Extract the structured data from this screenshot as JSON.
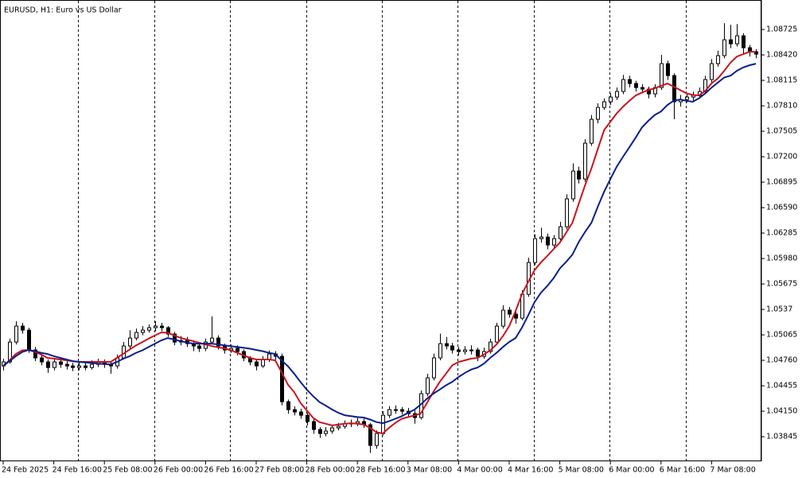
{
  "chart_data": {
    "type": "candlestick",
    "title": "EURUSD, H1:  Euro vs US Dollar",
    "categories": [
      "24 Feb 2025",
      null,
      null,
      null,
      null,
      null,
      null,
      null,
      "24 Feb 16:00",
      null,
      null,
      null,
      null,
      null,
      null,
      null,
      "25 Feb 08:00",
      null,
      null,
      null,
      null,
      null,
      null,
      null,
      "26 Feb 00:00",
      null,
      null,
      null,
      null,
      null,
      null,
      null,
      "26 Feb 16:00",
      null,
      null,
      null,
      null,
      null,
      null,
      null,
      "27 Feb 08:00",
      null,
      null,
      null,
      null,
      null,
      null,
      null,
      "28 Feb 00:00",
      null,
      null,
      null,
      null,
      null,
      null,
      null,
      "28 Feb 16:00",
      null,
      null,
      null,
      null,
      null,
      null,
      null,
      "3 Mar 08:00",
      null,
      null,
      null,
      null,
      null,
      null,
      null,
      "4 Mar 00:00",
      null,
      null,
      null,
      null,
      null,
      null,
      null,
      "4 Mar 16:00",
      null,
      null,
      null,
      null,
      null,
      null,
      null,
      "5 Mar 08:00",
      null,
      null,
      null,
      null,
      null,
      null,
      null,
      "6 Mar 00:00",
      null,
      null,
      null,
      null,
      null,
      null,
      null,
      "6 Mar 16:00",
      null,
      null,
      null,
      null,
      null,
      null,
      null,
      "7 Mar 08:00",
      null,
      null,
      null,
      null,
      null,
      null,
      null
    ],
    "open": [
      1.04693,
      1.04741,
      1.04979,
      1.0517,
      1.05122,
      1.04884,
      1.04789,
      1.04741,
      1.04674,
      1.04741,
      1.04712,
      1.04693,
      1.04674,
      1.04693,
      1.04674,
      1.04712,
      1.04741,
      1.04712,
      1.04693,
      1.04789,
      1.04932,
      1.05027,
      1.05094,
      1.05122,
      1.05151,
      1.0517,
      1.05151,
      1.05075,
      1.04979,
      1.04998,
      1.0496,
      1.04932,
      1.04903,
      1.04979,
      1.05027,
      1.04932,
      1.04884,
      1.04903,
      1.04865,
      1.04789,
      1.04741,
      1.04693,
      1.0477,
      1.04836,
      1.04808,
      1.04264,
      1.04169,
      1.04141,
      1.04102,
      1.04026,
      1.03931,
      1.03883,
      1.03912,
      1.0395,
      1.03969,
      1.03998,
      1.04007,
      1.04026,
      1.03988,
      1.0374,
      1.03883,
      1.04102,
      1.04169,
      1.04169,
      1.0415,
      1.04121,
      1.04074,
      1.0436,
      1.0455,
      1.04789,
      1.0496,
      1.04932,
      1.04884,
      1.04865,
      1.04884,
      1.04884,
      1.04808,
      1.04865,
      1.04979,
      1.0517,
      1.05361,
      1.05313,
      1.05265,
      1.05551,
      1.05932,
      1.06218,
      1.06237,
      1.06142,
      1.06218,
      1.06361,
      1.06695,
      1.07028,
      1.06933,
      1.07362,
      1.07648,
      1.07791,
      1.07858,
      1.07915,
      1.07982,
      1.08125,
      1.08077,
      1.08029,
      1.0801,
      1.07953,
      1.08029,
      1.08315,
      1.08172,
      1.07858,
      1.07886,
      1.07915,
      1.07934,
      1.07982,
      1.08125,
      1.08315,
      1.08411,
      1.08601,
      1.08553,
      1.08649,
      1.08506,
      1.08458
    ],
    "high": [
      1.0478,
      1.0502,
      1.0523,
      1.0521,
      1.0515,
      1.0492,
      1.0483,
      1.0477,
      1.0479,
      1.0478,
      1.0475,
      1.0473,
      1.0474,
      1.0473,
      1.0476,
      1.0478,
      1.0477,
      1.0474,
      1.0483,
      1.0498,
      1.0512,
      1.0514,
      1.0517,
      1.0519,
      1.0523,
      1.0521,
      1.0517,
      1.051,
      1.0505,
      1.0504,
      1.05,
      1.0497,
      1.0502,
      1.05287,
      1.0506,
      1.0496,
      1.0495,
      1.0494,
      1.0489,
      1.0481,
      1.0477,
      1.0481,
      1.0488,
      1.0487,
      1.0484,
      1.0429,
      1.0421,
      1.0418,
      1.0413,
      1.0406,
      1.0396,
      1.0396,
      1.0399,
      1.0401,
      1.0404,
      1.0405,
      1.0407,
      1.0406,
      1.0401,
      1.0392,
      1.0415,
      1.0421,
      1.0422,
      1.042,
      1.0419,
      1.0416,
      1.044,
      1.046,
      1.0484,
      1.0508,
      1.0504,
      1.0497,
      1.0492,
      1.0493,
      1.0494,
      1.0491,
      1.0491,
      1.0502,
      1.0521,
      1.0542,
      1.054,
      1.0535,
      1.056,
      1.0599,
      1.0627,
      1.0635,
      1.0628,
      1.0626,
      1.0642,
      1.0675,
      1.0712,
      1.0708,
      1.0741,
      1.077,
      1.0784,
      1.079,
      1.0796,
      1.0803,
      1.0818,
      1.0817,
      1.0811,
      1.0807,
      1.0804,
      1.0807,
      1.0842,
      1.0835,
      1.082,
      1.0794,
      1.0796,
      1.0798,
      1.0803,
      1.0817,
      1.0837,
      1.0847,
      1.088,
      1.0878,
      1.0879,
      1.0868,
      1.0854,
      1.0849
    ],
    "low": [
      1.0464,
      1.0472,
      1.0495,
      1.0508,
      1.0485,
      1.0475,
      1.047,
      1.0461,
      1.0464,
      1.0467,
      1.0465,
      1.0463,
      1.0464,
      1.0464,
      1.0465,
      1.0468,
      1.0467,
      1.046,
      1.0466,
      1.0477,
      1.049,
      1.05,
      1.0506,
      1.0509,
      1.0511,
      1.0511,
      1.0504,
      1.0494,
      1.0494,
      1.0492,
      1.0487,
      1.0486,
      1.0487,
      1.0495,
      1.0489,
      1.0484,
      1.0485,
      1.0482,
      1.0475,
      1.047,
      1.0464,
      1.0467,
      1.0474,
      1.0476,
      1.0422,
      1.0412,
      1.041,
      1.0406,
      1.0398,
      1.0388,
      1.0383,
      1.0385,
      1.0388,
      1.0392,
      1.0394,
      1.0396,
      1.0397,
      1.0395,
      1.0365,
      1.037,
      1.0386,
      1.0407,
      1.0412,
      1.0411,
      1.0408,
      1.04,
      1.0405,
      1.0433,
      1.0452,
      1.0476,
      1.0489,
      1.0484,
      1.0482,
      1.0483,
      1.0483,
      1.0475,
      1.0478,
      1.0484,
      1.0495,
      1.0514,
      1.0527,
      1.052,
      1.0524,
      1.0552,
      1.059,
      1.0617,
      1.0609,
      1.061,
      1.0619,
      1.0633,
      1.0666,
      1.0688,
      1.069,
      1.0733,
      1.076,
      1.0776,
      1.0782,
      1.0788,
      1.0795,
      1.0803,
      1.0798,
      1.0796,
      1.079,
      1.0791,
      1.08,
      1.0812,
      1.0765,
      1.078,
      1.0785,
      1.0787,
      1.079,
      1.0795,
      1.0809,
      1.0828,
      1.0838,
      1.085,
      1.0852,
      1.0844,
      1.084,
      1.0838
    ],
    "close": [
      1.04741,
      1.04979,
      1.0517,
      1.05122,
      1.04884,
      1.04789,
      1.04741,
      1.04674,
      1.04741,
      1.04712,
      1.04693,
      1.04674,
      1.04693,
      1.04674,
      1.04712,
      1.04741,
      1.04712,
      1.04693,
      1.04789,
      1.04932,
      1.05027,
      1.05094,
      1.05122,
      1.05151,
      1.0517,
      1.05151,
      1.05075,
      1.04979,
      1.04998,
      1.0496,
      1.04932,
      1.04903,
      1.04979,
      1.05027,
      1.04932,
      1.04884,
      1.04903,
      1.04865,
      1.04789,
      1.04741,
      1.04693,
      1.0477,
      1.04836,
      1.04808,
      1.04264,
      1.04169,
      1.04141,
      1.04102,
      1.04026,
      1.03931,
      1.03883,
      1.03912,
      1.0395,
      1.03969,
      1.03998,
      1.04007,
      1.04026,
      1.03988,
      1.0374,
      1.03883,
      1.04102,
      1.04169,
      1.04169,
      1.0415,
      1.04121,
      1.04074,
      1.0436,
      1.0455,
      1.04789,
      1.0496,
      1.04932,
      1.04884,
      1.04865,
      1.04884,
      1.04884,
      1.04808,
      1.04865,
      1.04979,
      1.0517,
      1.05361,
      1.05313,
      1.05265,
      1.05551,
      1.05932,
      1.06218,
      1.06237,
      1.06142,
      1.06218,
      1.06361,
      1.06695,
      1.07028,
      1.06933,
      1.07362,
      1.07648,
      1.07791,
      1.07858,
      1.07915,
      1.07982,
      1.08125,
      1.08077,
      1.08029,
      1.0801,
      1.07953,
      1.08029,
      1.08315,
      1.08172,
      1.07858,
      1.07886,
      1.07915,
      1.07934,
      1.07982,
      1.08125,
      1.08315,
      1.08411,
      1.08601,
      1.08553,
      1.08649,
      1.08506,
      1.08458,
      1.0843
    ],
    "series": [
      {
        "color": "#c8141e",
        "values": [
          1.04693,
          1.0476,
          1.04836,
          1.0488,
          1.04884,
          1.0486,
          1.0483,
          1.04789,
          1.0478,
          1.0477,
          1.0476,
          1.0475,
          1.04741,
          1.04741,
          1.04741,
          1.04741,
          1.04741,
          1.04741,
          1.0479,
          1.0484,
          1.0489,
          1.0494,
          1.04979,
          1.0502,
          1.0506,
          1.05094,
          1.0509,
          1.0506,
          1.0503,
          1.0501,
          1.0499,
          1.0497,
          1.0495,
          1.0493,
          1.04915,
          1.04903,
          1.0488,
          1.0485,
          1.0482,
          1.0479,
          1.0477,
          1.0477,
          1.0477,
          1.0476,
          1.0462,
          1.0447,
          1.0438,
          1.0425,
          1.0416,
          1.0407,
          1.0402,
          1.04,
          1.0398,
          1.0399,
          1.04,
          1.04007,
          1.04,
          1.0399,
          1.0395,
          1.039,
          1.03883,
          1.0395,
          1.0401,
          1.0406,
          1.0408,
          1.041,
          1.04121,
          1.0425,
          1.0438,
          1.045,
          1.046,
          1.047,
          1.0474,
          1.0476,
          1.0478,
          1.04789,
          1.0483,
          1.0488,
          1.0495,
          1.0505,
          1.0517,
          1.0535,
          1.0555,
          1.057,
          1.0584,
          1.05932,
          1.0601,
          1.0609,
          1.0617,
          1.0629,
          1.06409,
          1.0664,
          1.0686,
          1.0706,
          1.0729,
          1.0752,
          1.0762,
          1.0772,
          1.078,
          1.0787,
          1.07934,
          1.0797,
          1.08,
          1.0802,
          1.0805,
          1.08077,
          1.0804,
          1.08,
          1.0796,
          1.0794,
          1.07934,
          1.0799,
          1.0808,
          1.0814,
          1.0823,
          1.0833,
          1.084,
          1.0843,
          1.08458,
          1.08458
        ]
      },
      {
        "color": "#0a1e8c",
        "values": [
          1.04693,
          1.0475,
          1.0481,
          1.0486,
          1.04884,
          1.0487,
          1.0485,
          1.04836,
          1.0481,
          1.0479,
          1.0477,
          1.0475,
          1.04741,
          1.04735,
          1.0473,
          1.0472,
          1.04715,
          1.04712,
          1.0474,
          1.0478,
          1.0481,
          1.0485,
          1.0488,
          1.0492,
          1.0496,
          1.05,
          1.05027,
          1.0501,
          1.0499,
          1.04975,
          1.0496,
          1.0496,
          1.0496,
          1.0496,
          1.0495,
          1.0494,
          1.0493,
          1.0492,
          1.0491,
          1.049,
          1.04884,
          1.0487,
          1.0485,
          1.04836,
          1.0476,
          1.0469,
          1.046,
          1.045,
          1.04408,
          1.0433,
          1.0426,
          1.04217,
          1.0417,
          1.0413,
          1.04102,
          1.0409,
          1.0408,
          1.04074,
          1.0405,
          1.0402,
          1.04007,
          1.0403,
          1.0406,
          1.0409,
          1.0413,
          1.04169,
          1.0423,
          1.043,
          1.0436,
          1.0441,
          1.0446,
          1.04503,
          1.0456,
          1.0461,
          1.0465,
          1.04674,
          1.0472,
          1.04789,
          1.0485,
          1.0492,
          1.0498,
          1.05027,
          1.0515,
          1.053,
          1.05456,
          1.0557,
          1.0565,
          1.05742,
          1.0586,
          1.0594,
          1.06028,
          1.0618,
          1.063,
          1.06409,
          1.066,
          1.0678,
          1.06933,
          1.0708,
          1.072,
          1.07314,
          1.0743,
          1.07553,
          1.0763,
          1.077,
          1.07743,
          1.0782,
          1.0787,
          1.07886,
          1.0787,
          1.07858,
          1.079,
          1.0796,
          1.08029,
          1.0809,
          1.0815,
          1.08172,
          1.0823,
          1.0827,
          1.08296,
          1.08315
        ]
      }
    ],
    "ylim": [
      1.0355,
      1.09078
    ],
    "yticks": [
      1.08725,
      {
        "value": 1.0842,
        "label": "1.08420"
      },
      1.08115,
      {
        "value": 1.0781,
        "label": "1.07810"
      },
      1.07505,
      {
        "value": 1.072,
        "label": "1.07200"
      },
      1.06895,
      {
        "value": 1.0659,
        "label": "1.06590"
      },
      1.06285,
      {
        "value": 1.0598,
        "label": "1.05980"
      },
      1.05675,
      1.0537,
      1.05065,
      {
        "value": 1.0476,
        "label": "1.04760"
      },
      1.04455,
      {
        "value": 1.0415,
        "label": "1.04150"
      },
      1.03845
    ],
    "period_separators": true
  }
}
